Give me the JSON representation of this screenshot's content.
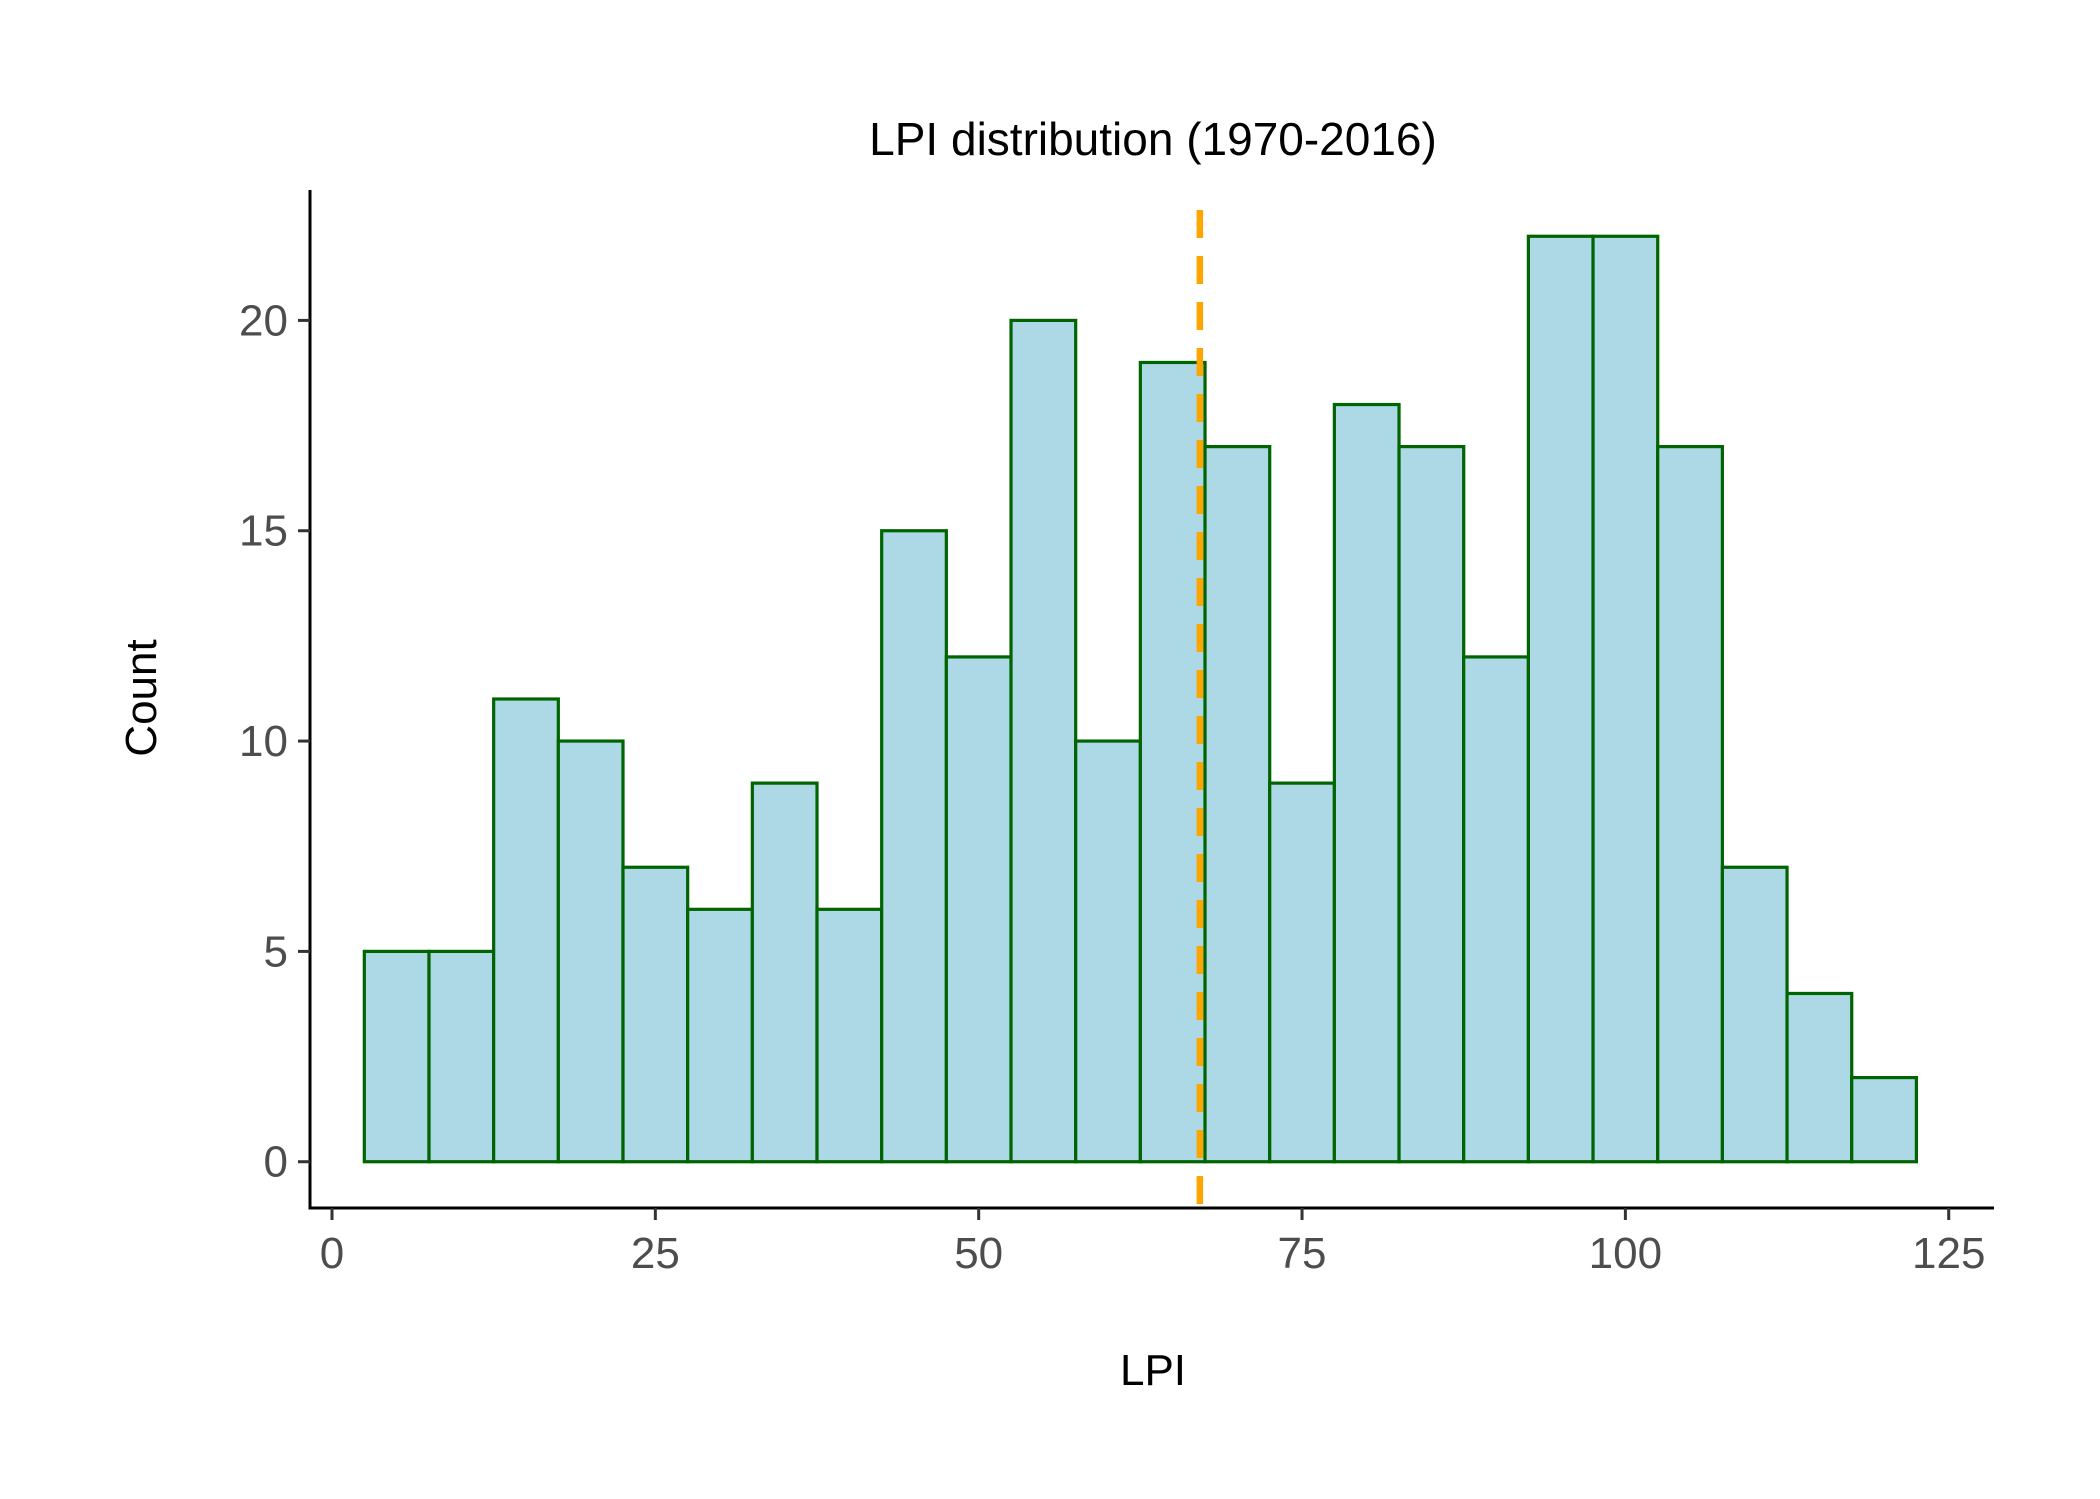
{
  "chart_data": {
    "type": "bar",
    "title": "LPI distribution (1970-2016)",
    "xlabel": "LPI",
    "ylabel": "Count",
    "bin_width": 5,
    "bins": [
      {
        "x0": 2.5,
        "x1": 7.5,
        "count": 5
      },
      {
        "x0": 7.5,
        "x1": 12.5,
        "count": 5
      },
      {
        "x0": 12.5,
        "x1": 17.5,
        "count": 11
      },
      {
        "x0": 17.5,
        "x1": 22.5,
        "count": 10
      },
      {
        "x0": 22.5,
        "x1": 27.5,
        "count": 7
      },
      {
        "x0": 27.5,
        "x1": 32.5,
        "count": 6
      },
      {
        "x0": 32.5,
        "x1": 37.5,
        "count": 9
      },
      {
        "x0": 37.5,
        "x1": 42.5,
        "count": 6
      },
      {
        "x0": 42.5,
        "x1": 47.5,
        "count": 15
      },
      {
        "x0": 47.5,
        "x1": 52.5,
        "count": 12
      },
      {
        "x0": 52.5,
        "x1": 57.5,
        "count": 20
      },
      {
        "x0": 57.5,
        "x1": 62.5,
        "count": 10
      },
      {
        "x0": 62.5,
        "x1": 67.5,
        "count": 19
      },
      {
        "x0": 67.5,
        "x1": 72.5,
        "count": 17
      },
      {
        "x0": 72.5,
        "x1": 77.5,
        "count": 9
      },
      {
        "x0": 77.5,
        "x1": 82.5,
        "count": 18
      },
      {
        "x0": 82.5,
        "x1": 87.5,
        "count": 17
      },
      {
        "x0": 87.5,
        "x1": 92.5,
        "count": 12
      },
      {
        "x0": 92.5,
        "x1": 97.5,
        "count": 22
      },
      {
        "x0": 97.5,
        "x1": 102.5,
        "count": 22
      },
      {
        "x0": 102.5,
        "x1": 107.5,
        "count": 17
      },
      {
        "x0": 107.5,
        "x1": 112.5,
        "count": 7
      },
      {
        "x0": 112.5,
        "x1": 117.5,
        "count": 4
      },
      {
        "x0": 117.5,
        "x1": 122.5,
        "count": 2
      }
    ],
    "mean_line": {
      "x": 67.1,
      "style": "dashed",
      "color": "#FFA500"
    },
    "xlim": [
      -1.7,
      128.5
    ],
    "ylim": [
      -1.1,
      23.1
    ],
    "xticks": [
      0,
      25,
      50,
      75,
      100,
      125
    ],
    "yticks": [
      0,
      5,
      10,
      15,
      20
    ],
    "grid": false,
    "legend": "none",
    "colors": {
      "bar_fill": "#ADD8E6",
      "bar_outline": "#006400",
      "axis": "#000000",
      "tick_label": "#4d4d4d",
      "background": "#ffffff"
    }
  }
}
